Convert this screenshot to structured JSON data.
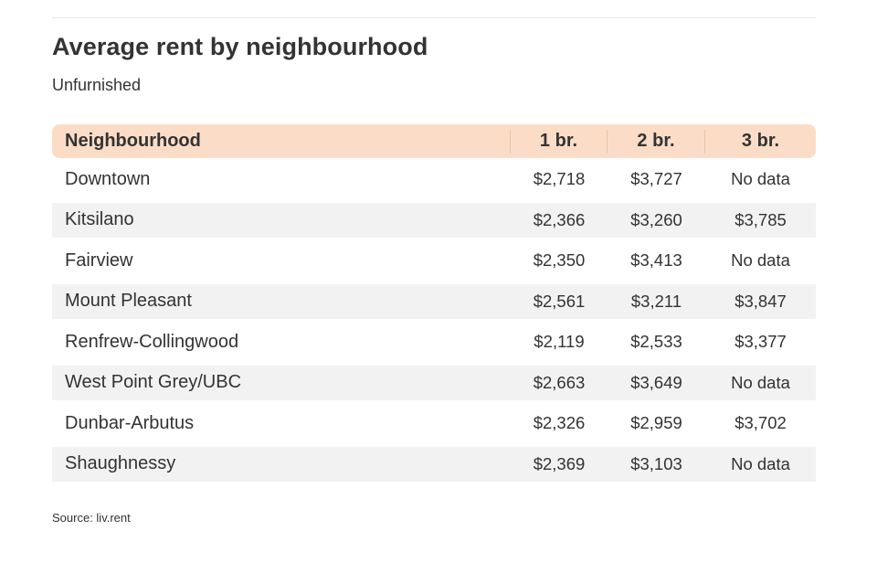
{
  "chart_data": {
    "type": "table",
    "title": "Average rent by neighbourhood",
    "subtitle": "Unfurnished",
    "columns": [
      "Neighbourhood",
      "1 br.",
      "2 br.",
      "3 br."
    ],
    "rows": [
      [
        "Downtown",
        "$2,718",
        "$3,727",
        "No data"
      ],
      [
        "Kitsilano",
        "$2,366",
        "$3,260",
        "$3,785"
      ],
      [
        "Fairview",
        "$2,350",
        "$3,413",
        "No data"
      ],
      [
        "Mount Pleasant",
        "$2,561",
        "$3,211",
        "$3,847"
      ],
      [
        "Renfrew-Collingwood",
        "$2,119",
        "$2,533",
        "$3,377"
      ],
      [
        "West Point Grey/UBC",
        "$2,663",
        "$3,649",
        "No data"
      ],
      [
        "Dunbar-Arbutus",
        "$2,326",
        "$2,959",
        "$3,702"
      ],
      [
        "Shaughnessy",
        "$2,369",
        "$3,103",
        "No data"
      ]
    ],
    "source": "Source: liv.rent",
    "colors": {
      "header_background": "#fbddc7",
      "stripe_background": "#f2f2f2",
      "text": "#333333"
    }
  }
}
